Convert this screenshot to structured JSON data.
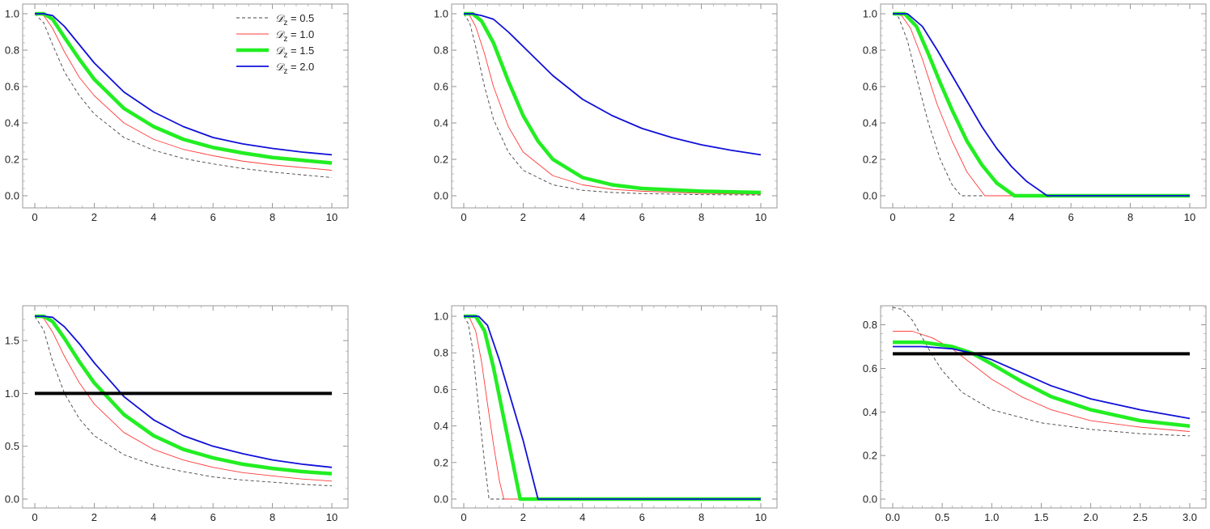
{
  "chart_data": [
    {
      "type": "line",
      "xlim": [
        0,
        10
      ],
      "ylim": [
        0,
        1.0
      ],
      "xticks": [
        "0",
        "2",
        "4",
        "6",
        "8",
        "10"
      ],
      "yticks": [
        "0.0",
        "0.2",
        "0.4",
        "0.6",
        "0.8",
        "1.0"
      ],
      "legend": {
        "placement": "top-right",
        "entries": [
          {
            "symbol": "𝒟",
            "sub": "z",
            "value_text": " = 0.5"
          },
          {
            "symbol": "𝒟",
            "sub": "z",
            "value_text": " = 1.0"
          },
          {
            "symbol": "𝒟",
            "sub": "z",
            "value_text": " = 1.5"
          },
          {
            "symbol": "𝒟",
            "sub": "z",
            "value_text": " = 2.0"
          }
        ]
      },
      "series": [
        {
          "style": "black-dashed",
          "x": [
            0,
            0.3,
            0.6,
            1,
            1.5,
            2,
            3,
            4,
            5,
            6,
            7,
            8,
            9,
            10
          ],
          "y": [
            1.0,
            0.95,
            0.83,
            0.68,
            0.55,
            0.45,
            0.32,
            0.25,
            0.205,
            0.175,
            0.15,
            0.13,
            0.115,
            0.1
          ]
        },
        {
          "style": "red-thin",
          "x": [
            0,
            0.3,
            0.6,
            1,
            1.5,
            2,
            3,
            4,
            5,
            6,
            7,
            8,
            9,
            10
          ],
          "y": [
            1.0,
            0.99,
            0.92,
            0.79,
            0.65,
            0.55,
            0.4,
            0.31,
            0.255,
            0.22,
            0.19,
            0.17,
            0.155,
            0.14
          ]
        },
        {
          "style": "green-thick",
          "x": [
            0,
            0.3,
            0.6,
            1,
            1.5,
            2,
            3,
            4,
            5,
            6,
            7,
            8,
            9,
            10
          ],
          "y": [
            1.0,
            1.0,
            0.97,
            0.87,
            0.75,
            0.64,
            0.48,
            0.38,
            0.31,
            0.265,
            0.235,
            0.21,
            0.195,
            0.18
          ]
        },
        {
          "style": "blue",
          "x": [
            0,
            0.3,
            0.6,
            1,
            1.5,
            2,
            3,
            4,
            5,
            6,
            7,
            8,
            9,
            10
          ],
          "y": [
            1.0,
            1.0,
            0.99,
            0.93,
            0.83,
            0.73,
            0.57,
            0.46,
            0.38,
            0.32,
            0.285,
            0.26,
            0.24,
            0.225
          ]
        }
      ]
    },
    {
      "type": "line",
      "xlim": [
        0,
        10
      ],
      "ylim": [
        0,
        1.0
      ],
      "xticks": [
        "0",
        "2",
        "4",
        "6",
        "8",
        "10"
      ],
      "yticks": [
        "0.0",
        "0.2",
        "0.4",
        "0.6",
        "0.8",
        "1.0"
      ],
      "series": [
        {
          "style": "black-dashed",
          "x": [
            0,
            0.2,
            0.4,
            0.7,
            1,
            1.5,
            2,
            3,
            4,
            5,
            6,
            8,
            10
          ],
          "y": [
            1.0,
            0.95,
            0.82,
            0.6,
            0.42,
            0.24,
            0.14,
            0.06,
            0.03,
            0.018,
            0.012,
            0.006,
            0.004
          ]
        },
        {
          "style": "red-thin",
          "x": [
            0,
            0.2,
            0.4,
            0.7,
            1,
            1.5,
            2,
            3,
            4,
            5,
            6,
            8,
            10
          ],
          "y": [
            1.0,
            0.99,
            0.93,
            0.78,
            0.6,
            0.38,
            0.24,
            0.11,
            0.06,
            0.035,
            0.025,
            0.013,
            0.008
          ]
        },
        {
          "style": "green-thick",
          "x": [
            0,
            0.3,
            0.6,
            1,
            1.5,
            2,
            2.5,
            3,
            4,
            5,
            6,
            8,
            10
          ],
          "y": [
            1.0,
            1.0,
            0.96,
            0.84,
            0.63,
            0.44,
            0.3,
            0.2,
            0.1,
            0.06,
            0.04,
            0.025,
            0.018
          ]
        },
        {
          "style": "blue",
          "x": [
            0,
            0.3,
            0.6,
            1,
            1.5,
            2,
            3,
            4,
            5,
            6,
            7,
            8,
            9,
            10
          ],
          "y": [
            1.0,
            1.0,
            0.99,
            0.97,
            0.9,
            0.82,
            0.66,
            0.53,
            0.44,
            0.37,
            0.32,
            0.28,
            0.25,
            0.225
          ]
        }
      ]
    },
    {
      "type": "line",
      "xlim": [
        0,
        10
      ],
      "ylim": [
        0,
        1.0
      ],
      "xticks": [
        "0",
        "2",
        "4",
        "6",
        "8",
        "10"
      ],
      "yticks": [
        "0.0",
        "0.2",
        "0.4",
        "0.6",
        "0.8",
        "1.0"
      ],
      "series": [
        {
          "style": "black-dashed",
          "x": [
            0,
            0.2,
            0.5,
            0.8,
            1.2,
            1.6,
            2.0,
            2.3,
            4,
            6,
            8,
            10
          ],
          "y": [
            1.0,
            0.98,
            0.85,
            0.65,
            0.4,
            0.2,
            0.06,
            0.0,
            0,
            0,
            0,
            0
          ]
        },
        {
          "style": "red-thin",
          "x": [
            0,
            0.3,
            0.6,
            1,
            1.5,
            2,
            2.5,
            3.1,
            4,
            6,
            8,
            10
          ],
          "y": [
            1.0,
            0.99,
            0.92,
            0.75,
            0.5,
            0.3,
            0.13,
            0.0,
            0,
            0,
            0,
            0
          ]
        },
        {
          "style": "green-thick",
          "x": [
            0,
            0.4,
            0.8,
            1.2,
            1.6,
            2,
            2.5,
            3,
            3.5,
            4.1,
            6,
            8,
            10
          ],
          "y": [
            1.0,
            1.0,
            0.93,
            0.78,
            0.62,
            0.47,
            0.3,
            0.17,
            0.07,
            0.0,
            0,
            0,
            0
          ]
        },
        {
          "style": "blue",
          "x": [
            0,
            0.5,
            1,
            1.5,
            2,
            2.5,
            3,
            3.5,
            4,
            4.5,
            5.2,
            6,
            8,
            10
          ],
          "y": [
            1.0,
            1.0,
            0.93,
            0.8,
            0.66,
            0.52,
            0.38,
            0.26,
            0.16,
            0.08,
            0.0,
            0,
            0,
            0
          ]
        }
      ]
    },
    {
      "type": "line",
      "xlim": [
        0,
        10
      ],
      "ylim": [
        0,
        1.73
      ],
      "xticks": [
        "0",
        "2",
        "4",
        "6",
        "8",
        "10"
      ],
      "yticks": [
        "0.0",
        "0.5",
        "1.0",
        "1.5"
      ],
      "series": [
        {
          "style": "black-dashed",
          "x": [
            0,
            0.3,
            0.6,
            1,
            1.5,
            2,
            3,
            4,
            5,
            6,
            7,
            8,
            9,
            10
          ],
          "y": [
            1.73,
            1.6,
            1.3,
            1.0,
            0.76,
            0.6,
            0.42,
            0.32,
            0.26,
            0.21,
            0.18,
            0.16,
            0.14,
            0.125
          ]
        },
        {
          "style": "red-thin",
          "x": [
            0,
            0.3,
            0.6,
            1,
            1.5,
            2,
            3,
            4,
            5,
            6,
            7,
            8,
            9,
            10
          ],
          "y": [
            1.73,
            1.71,
            1.58,
            1.35,
            1.1,
            0.9,
            0.63,
            0.47,
            0.37,
            0.3,
            0.25,
            0.22,
            0.19,
            0.17
          ]
        },
        {
          "style": "green-thick",
          "x": [
            0,
            0.3,
            0.6,
            1,
            1.5,
            2,
            3,
            4,
            5,
            6,
            7,
            8,
            9,
            10
          ],
          "y": [
            1.73,
            1.73,
            1.68,
            1.52,
            1.3,
            1.1,
            0.8,
            0.6,
            0.47,
            0.39,
            0.33,
            0.29,
            0.26,
            0.24
          ]
        },
        {
          "style": "blue",
          "x": [
            0,
            0.3,
            0.6,
            1,
            1.5,
            2,
            3,
            4,
            5,
            6,
            7,
            8,
            9,
            10
          ],
          "y": [
            1.73,
            1.73,
            1.72,
            1.63,
            1.47,
            1.29,
            0.97,
            0.75,
            0.6,
            0.5,
            0.43,
            0.37,
            0.33,
            0.3
          ]
        },
        {
          "style": "black-thick",
          "x": [
            0,
            10
          ],
          "y": [
            1.0,
            1.0
          ]
        }
      ]
    },
    {
      "type": "line",
      "xlim": [
        0,
        10
      ],
      "ylim": [
        0,
        1.0
      ],
      "xticks": [
        "0",
        "2",
        "4",
        "6",
        "8",
        "10"
      ],
      "yticks": [
        "0.0",
        "0.2",
        "0.4",
        "0.6",
        "0.8",
        "1.0"
      ],
      "series": [
        {
          "style": "black-dashed",
          "x": [
            0,
            0.15,
            0.3,
            0.5,
            0.7,
            0.85,
            10
          ],
          "y": [
            1.0,
            0.96,
            0.82,
            0.5,
            0.2,
            0.0,
            0.0
          ]
        },
        {
          "style": "red-thin",
          "x": [
            0,
            0.2,
            0.4,
            0.6,
            0.8,
            1.0,
            1.2,
            1.35,
            10
          ],
          "y": [
            1.0,
            0.99,
            0.92,
            0.75,
            0.52,
            0.3,
            0.1,
            0.0,
            0.0
          ]
        },
        {
          "style": "green-thick",
          "x": [
            0,
            0.4,
            0.7,
            1.0,
            1.3,
            1.6,
            1.9,
            10
          ],
          "y": [
            1.0,
            1.0,
            0.92,
            0.72,
            0.48,
            0.24,
            0.0,
            0.0
          ]
        },
        {
          "style": "blue",
          "x": [
            0,
            0.5,
            0.8,
            1.2,
            1.6,
            2.0,
            2.5,
            10
          ],
          "y": [
            1.0,
            1.0,
            0.95,
            0.76,
            0.54,
            0.32,
            0.0,
            0.0
          ]
        }
      ]
    },
    {
      "type": "line",
      "xlim": [
        0,
        3.0
      ],
      "ylim": [
        0,
        0.88
      ],
      "xticks": [
        "0.0",
        "0.5",
        "1.0",
        "1.5",
        "2.0",
        "2.5",
        "3.0"
      ],
      "yticks": [
        "0.0",
        "0.2",
        "0.4",
        "0.6",
        "0.8"
      ],
      "series": [
        {
          "style": "black-dashed",
          "x": [
            0,
            0.1,
            0.2,
            0.3,
            0.4,
            0.5,
            0.7,
            1.0,
            1.5,
            2.0,
            2.5,
            3.0
          ],
          "y": [
            0.88,
            0.87,
            0.82,
            0.74,
            0.66,
            0.59,
            0.49,
            0.41,
            0.35,
            0.32,
            0.3,
            0.29
          ]
        },
        {
          "style": "red-thin",
          "x": [
            0,
            0.2,
            0.4,
            0.6,
            0.8,
            1.0,
            1.3,
            1.6,
            2.0,
            2.5,
            3.0
          ],
          "y": [
            0.77,
            0.77,
            0.74,
            0.69,
            0.62,
            0.55,
            0.47,
            0.41,
            0.36,
            0.33,
            0.31
          ]
        },
        {
          "style": "green-thick",
          "x": [
            0,
            0.3,
            0.6,
            0.8,
            1.0,
            1.3,
            1.6,
            2.0,
            2.5,
            3.0
          ],
          "y": [
            0.72,
            0.72,
            0.7,
            0.67,
            0.62,
            0.54,
            0.47,
            0.41,
            0.36,
            0.335
          ]
        },
        {
          "style": "blue",
          "x": [
            0,
            0.3,
            0.6,
            0.8,
            1.0,
            1.3,
            1.6,
            2.0,
            2.5,
            3.0
          ],
          "y": [
            0.7,
            0.7,
            0.69,
            0.67,
            0.64,
            0.58,
            0.52,
            0.46,
            0.41,
            0.37
          ]
        },
        {
          "style": "black-thick",
          "x": [
            0,
            3.0
          ],
          "y": [
            0.667,
            0.667
          ]
        }
      ]
    }
  ],
  "styles": {
    "black-dashed": {
      "color": "#444444"
    },
    "red-thin": {
      "color": "#ff3b3b"
    },
    "green-thick": {
      "color": "#22ee22"
    },
    "blue": {
      "color": "#1010d8"
    },
    "black-thick": {
      "color": "#000000"
    }
  }
}
